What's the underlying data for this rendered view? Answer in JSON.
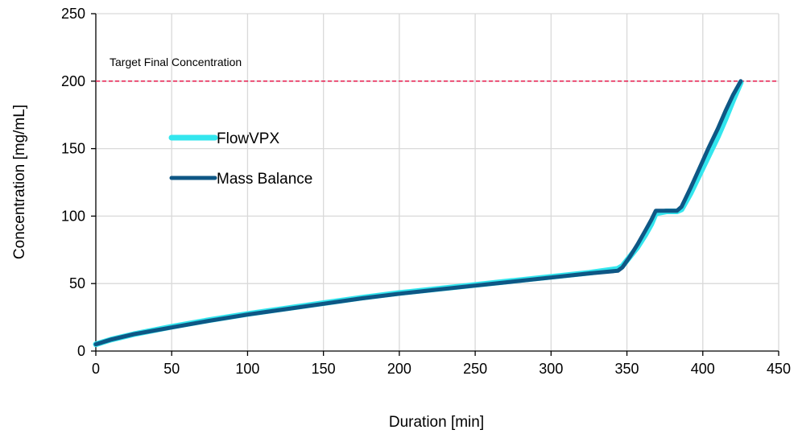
{
  "chart_data": {
    "type": "line",
    "xlabel": "Duration [min]",
    "ylabel": "Concentration [mg/mL]",
    "xlim": [
      0,
      450
    ],
    "ylim": [
      0,
      250
    ],
    "x_ticks": [
      0,
      50,
      100,
      150,
      200,
      250,
      300,
      350,
      400,
      450
    ],
    "y_ticks": [
      0,
      50,
      100,
      150,
      200,
      250
    ],
    "x_tick_labels": [
      "0",
      "50",
      "100",
      "150",
      "200",
      "250",
      "300",
      "350",
      "400",
      "450"
    ],
    "y_tick_labels": [
      "0",
      "50",
      "100",
      "150",
      "200",
      "250"
    ],
    "grid": true,
    "legend_position": "left-upper",
    "series": [
      {
        "name": "FlowVPX",
        "color": "#33e6ee",
        "x": [
          0,
          10,
          25,
          50,
          75,
          100,
          125,
          150,
          175,
          200,
          225,
          250,
          275,
          300,
          325,
          344,
          347,
          352,
          357,
          362,
          366,
          369,
          376,
          383,
          386,
          392,
          398,
          404,
          410,
          415,
          420,
          425
        ],
        "y": [
          5,
          8.5,
          12.5,
          18,
          23,
          27.5,
          31.5,
          35.5,
          39.5,
          43,
          46,
          49,
          52,
          55,
          58,
          61,
          63,
          70,
          77,
          86,
          94,
          102,
          103.5,
          103.5,
          105,
          117,
          131,
          145,
          159,
          172,
          186,
          199
        ]
      },
      {
        "name": "Mass Balance",
        "color": "#0e5785",
        "x": [
          0,
          10,
          25,
          50,
          75,
          100,
          125,
          150,
          175,
          200,
          225,
          250,
          275,
          300,
          325,
          344,
          347,
          352,
          357,
          362,
          366,
          369,
          376,
          383,
          386,
          392,
          398,
          404,
          410,
          415,
          420,
          425
        ],
        "y": [
          5,
          8.5,
          12.5,
          17.5,
          22.5,
          27,
          31,
          35,
          39,
          42.5,
          45.5,
          48.5,
          51.5,
          54.5,
          57.5,
          59.5,
          62,
          70,
          79,
          89,
          97,
          104,
          104,
          104,
          107,
          121,
          136,
          151,
          165,
          178,
          190,
          200
        ]
      }
    ],
    "reference_line": {
      "y": 200,
      "label": "Target Final Concentration",
      "color": "#e6194b",
      "style": "dashed"
    }
  }
}
